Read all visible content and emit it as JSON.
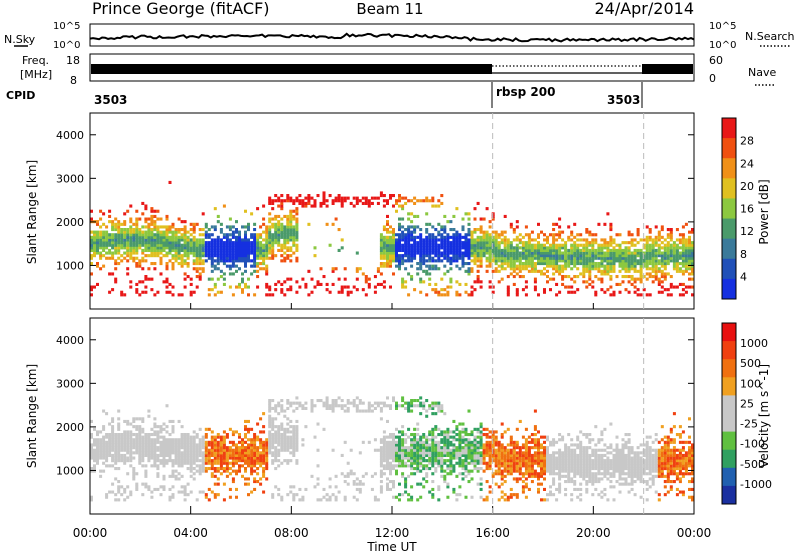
{
  "header": {
    "station": "Prince George (fitACF)",
    "beam": "Beam 11",
    "date": "24/Apr/2014"
  },
  "noise_panel": {
    "left_label": "N.Sky",
    "right_label": "N.Search",
    "left_ticks": [
      "10^5",
      "10^0"
    ],
    "right_ticks": [
      "10^5",
      "10^0"
    ]
  },
  "freq_panel": {
    "left_label_1": "Freq.",
    "left_label_2": "[MHz]",
    "left_ticks": [
      "18",
      "8"
    ],
    "right_label": "Nave",
    "right_ticks": [
      "60",
      "0"
    ]
  },
  "cpid": {
    "label": "CPID",
    "segments": [
      {
        "text": "3503",
        "start_h": 0,
        "end_h": 16
      },
      {
        "text": "rbsp 200",
        "start_h": 16,
        "end_h": 22
      },
      {
        "text": "3503",
        "start_h": 22,
        "end_h": 24
      }
    ]
  },
  "colors": {
    "power_scale": [
      "#1530e0",
      "#2050b8",
      "#3a7a9a",
      "#4a9a6a",
      "#8cc840",
      "#e0c020",
      "#f09018",
      "#f05010",
      "#e81818"
    ],
    "velocity_scale": [
      "#1a30a0",
      "#2060b0",
      "#30a060",
      "#60c040",
      "#c8c8c8",
      "#c8c8c8",
      "#f0a020",
      "#f07010",
      "#f04010",
      "#e81010"
    ]
  },
  "chart_data": [
    {
      "type": "heatmap",
      "name": "power",
      "xlabel": "",
      "ylabel": "Slant Range [km]",
      "xlim": [
        0,
        24
      ],
      "ylim": [
        0,
        4500
      ],
      "y_ticks": [
        1000,
        2000,
        3000,
        4000
      ],
      "colorbar_label": "Power [dB]",
      "colorbar_ticks": [
        "28",
        "24",
        "20",
        "16",
        "12",
        "8",
        "4"
      ]
    },
    {
      "type": "heatmap",
      "name": "velocity",
      "xlabel": "Time UT",
      "ylabel": "Slant Range [km]",
      "xlim": [
        0,
        24
      ],
      "ylim": [
        0,
        4500
      ],
      "x_ticks": [
        "00:00",
        "04:00",
        "08:00",
        "12:00",
        "16:00",
        "20:00",
        "00:00"
      ],
      "y_ticks": [
        1000,
        2000,
        3000,
        4000
      ],
      "colorbar_label": "Velocity [m s^-1]",
      "colorbar_ticks": [
        "1000",
        "500",
        "100",
        "25",
        "-25",
        "-100",
        "-500",
        "-1000"
      ]
    }
  ]
}
